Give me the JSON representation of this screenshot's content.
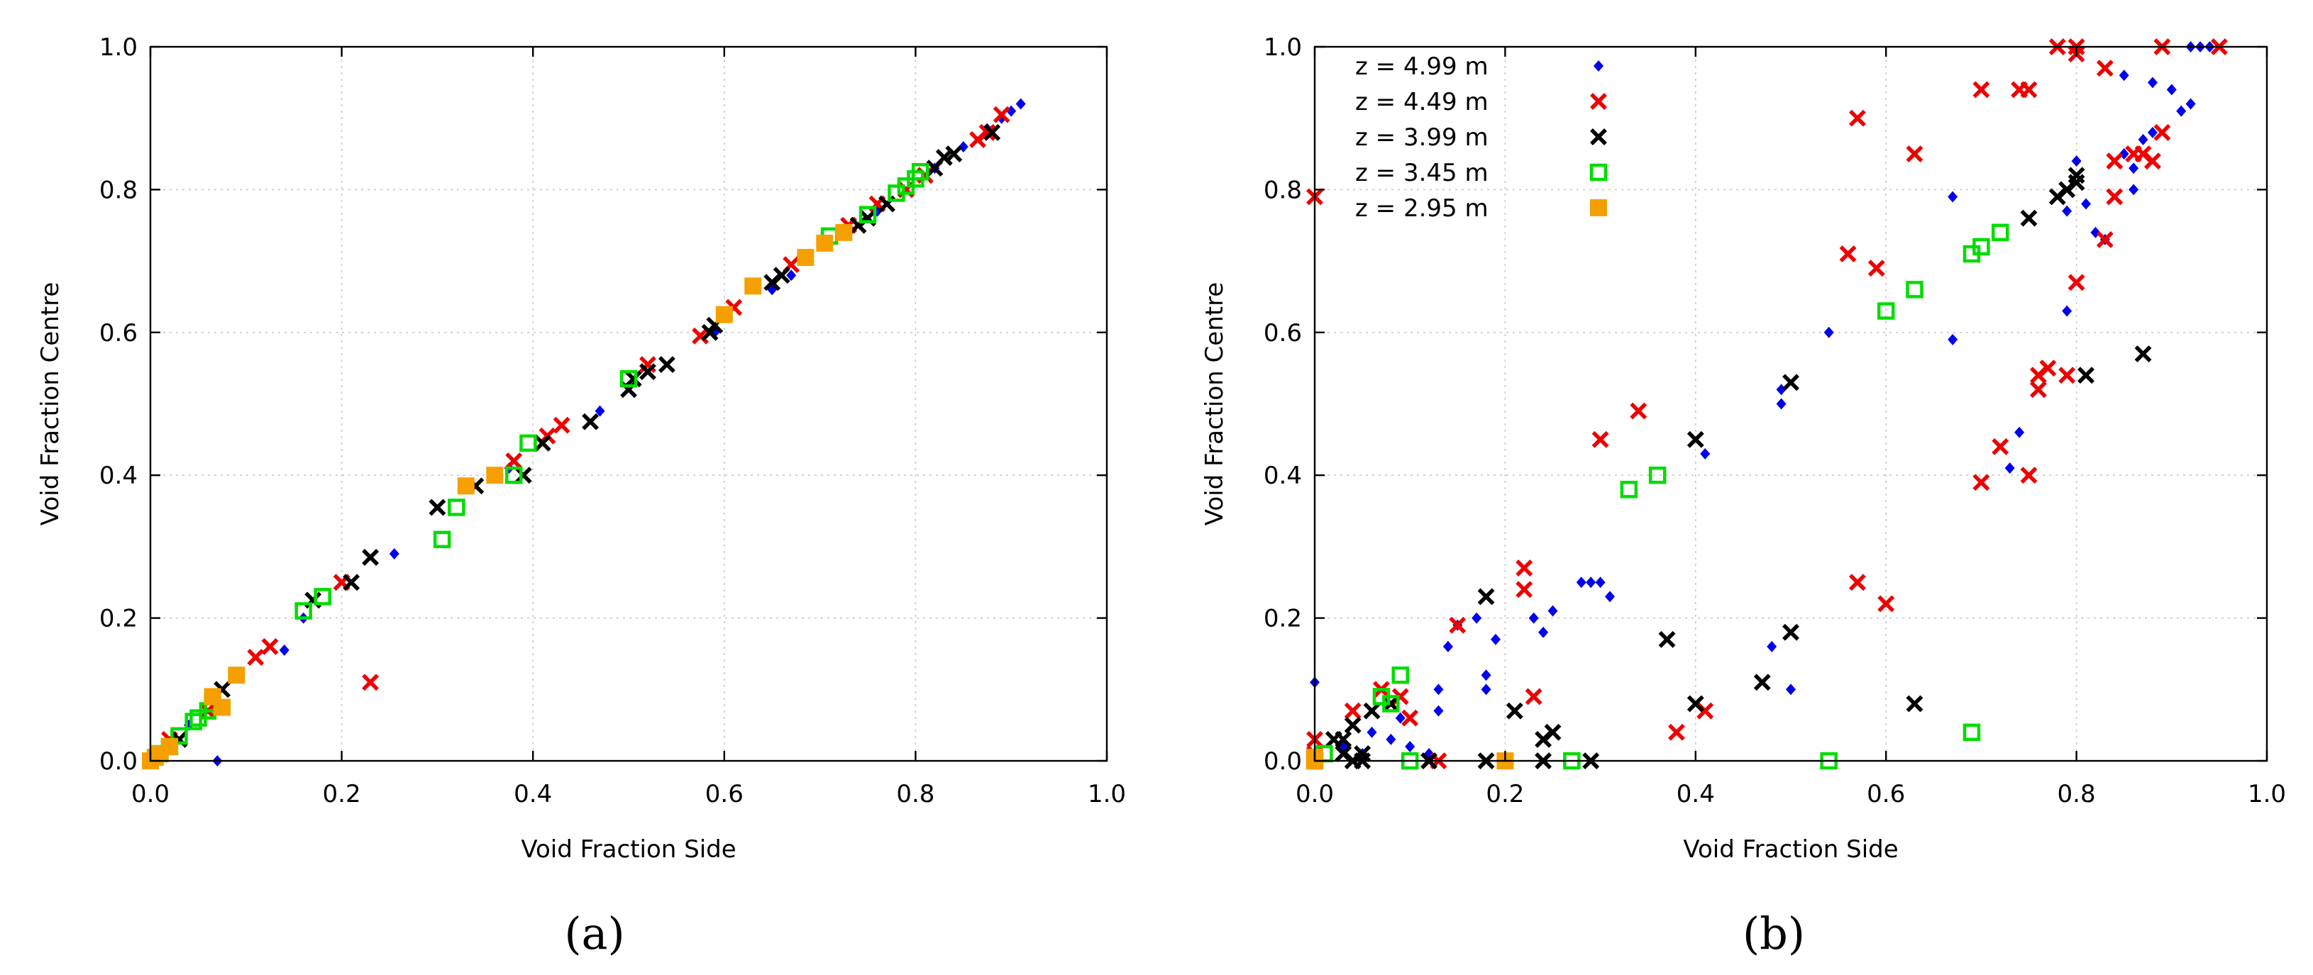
{
  "figure": {
    "panel_a_label": "(a)",
    "panel_b_label": "(b)"
  },
  "chart_data": [
    {
      "type": "scatter",
      "panel": "(a)",
      "title": "",
      "xlabel": "Void Fraction Side",
      "ylabel": "Void Fraction Centre",
      "xlim": [
        0,
        1
      ],
      "ylim": [
        0,
        1
      ],
      "xticks": [
        "0.0",
        "0.2",
        "0.4",
        "0.6",
        "0.8",
        "1.0"
      ],
      "yticks": [
        "0.0",
        "0.2",
        "0.4",
        "0.6",
        "0.8",
        "1.0"
      ],
      "grid": true,
      "series": [
        {
          "name": "z = 4.99 m",
          "color": "#0000ee",
          "marker": "diamond",
          "points": [
            [
              0.07,
              0.0
            ],
            [
              0.14,
              0.155
            ],
            [
              0.16,
              0.2
            ],
            [
              0.255,
              0.29
            ],
            [
              0.375,
              0.41
            ],
            [
              0.47,
              0.49
            ],
            [
              0.59,
              0.6
            ],
            [
              0.65,
              0.66
            ],
            [
              0.67,
              0.68
            ],
            [
              0.76,
              0.77
            ],
            [
              0.82,
              0.83
            ],
            [
              0.85,
              0.86
            ],
            [
              0.875,
              0.885
            ],
            [
              0.89,
              0.9
            ],
            [
              0.9,
              0.91
            ],
            [
              0.91,
              0.92
            ],
            [
              0.04,
              0.05
            ]
          ]
        },
        {
          "name": "z = 4.49 m",
          "color": "#ee0000",
          "marker": "x",
          "points": [
            [
              0.23,
              0.11
            ],
            [
              0.11,
              0.145
            ],
            [
              0.125,
              0.16
            ],
            [
              0.2,
              0.25
            ],
            [
              0.38,
              0.42
            ],
            [
              0.415,
              0.455
            ],
            [
              0.43,
              0.47
            ],
            [
              0.52,
              0.555
            ],
            [
              0.575,
              0.595
            ],
            [
              0.61,
              0.635
            ],
            [
              0.67,
              0.695
            ],
            [
              0.76,
              0.78
            ],
            [
              0.79,
              0.8
            ],
            [
              0.81,
              0.82
            ],
            [
              0.865,
              0.87
            ],
            [
              0.875,
              0.88
            ],
            [
              0.89,
              0.905
            ],
            [
              0.06,
              0.07
            ],
            [
              0.02,
              0.03
            ],
            [
              0.73,
              0.75
            ]
          ]
        },
        {
          "name": "z = 3.99 m",
          "color": "#000000",
          "marker": "x",
          "points": [
            [
              0.03,
              0.03
            ],
            [
              0.075,
              0.1
            ],
            [
              0.17,
              0.225
            ],
            [
              0.21,
              0.25
            ],
            [
              0.23,
              0.285
            ],
            [
              0.3,
              0.355
            ],
            [
              0.34,
              0.385
            ],
            [
              0.39,
              0.4
            ],
            [
              0.41,
              0.445
            ],
            [
              0.46,
              0.475
            ],
            [
              0.5,
              0.52
            ],
            [
              0.505,
              0.535
            ],
            [
              0.52,
              0.545
            ],
            [
              0.54,
              0.555
            ],
            [
              0.585,
              0.6
            ],
            [
              0.59,
              0.61
            ],
            [
              0.65,
              0.67
            ],
            [
              0.66,
              0.68
            ],
            [
              0.74,
              0.75
            ],
            [
              0.75,
              0.76
            ],
            [
              0.77,
              0.78
            ],
            [
              0.82,
              0.83
            ],
            [
              0.83,
              0.845
            ],
            [
              0.84,
              0.85
            ],
            [
              0.88,
              0.88
            ],
            [
              0.02,
              0.02
            ],
            [
              0.01,
              0.01
            ]
          ]
        },
        {
          "name": "z = 3.45 m",
          "color": "#00dd00",
          "marker": "open-square",
          "points": [
            [
              0.01,
              0.01
            ],
            [
              0.02,
              0.02
            ],
            [
              0.03,
              0.035
            ],
            [
              0.045,
              0.055
            ],
            [
              0.05,
              0.06
            ],
            [
              0.06,
              0.07
            ],
            [
              0.065,
              0.08
            ],
            [
              0.16,
              0.21
            ],
            [
              0.18,
              0.23
            ],
            [
              0.305,
              0.31
            ],
            [
              0.32,
              0.355
            ],
            [
              0.38,
              0.4
            ],
            [
              0.395,
              0.445
            ],
            [
              0.5,
              0.535
            ],
            [
              0.71,
              0.735
            ],
            [
              0.75,
              0.765
            ],
            [
              0.78,
              0.795
            ],
            [
              0.79,
              0.805
            ],
            [
              0.8,
              0.815
            ],
            [
              0.805,
              0.825
            ]
          ]
        },
        {
          "name": "z = 2.95 m",
          "color": "#f5a000",
          "marker": "filled-square",
          "points": [
            [
              0.0,
              0.0
            ],
            [
              0.005,
              0.005
            ],
            [
              0.01,
              0.01
            ],
            [
              0.02,
              0.02
            ],
            [
              0.065,
              0.09
            ],
            [
              0.075,
              0.075
            ],
            [
              0.09,
              0.12
            ],
            [
              0.33,
              0.385
            ],
            [
              0.36,
              0.4
            ],
            [
              0.6,
              0.625
            ],
            [
              0.63,
              0.665
            ],
            [
              0.685,
              0.705
            ],
            [
              0.705,
              0.725
            ],
            [
              0.725,
              0.74
            ]
          ]
        }
      ]
    },
    {
      "type": "scatter",
      "panel": "(b)",
      "title": "",
      "xlabel": "Void Fraction Side",
      "ylabel": "Void Fraction Centre",
      "xlim": [
        0,
        1
      ],
      "ylim": [
        0,
        1
      ],
      "xticks": [
        "0.0",
        "0.2",
        "0.4",
        "0.6",
        "0.8",
        "1.0"
      ],
      "yticks": [
        "0.0",
        "0.2",
        "0.4",
        "0.6",
        "0.8",
        "1.0"
      ],
      "grid": true,
      "legend": "top-left",
      "series": [
        {
          "name": "z = 4.99 m",
          "color": "#0000ee",
          "marker": "diamond",
          "points": [
            [
              0.0,
              0.11
            ],
            [
              0.13,
              0.07
            ],
            [
              0.13,
              0.1
            ],
            [
              0.14,
              0.16
            ],
            [
              0.15,
              0.19
            ],
            [
              0.17,
              0.2
            ],
            [
              0.18,
              0.12
            ],
            [
              0.18,
              0.1
            ],
            [
              0.19,
              0.17
            ],
            [
              0.23,
              0.2
            ],
            [
              0.24,
              0.18
            ],
            [
              0.25,
              0.21
            ],
            [
              0.28,
              0.25
            ],
            [
              0.29,
              0.25
            ],
            [
              0.3,
              0.25
            ],
            [
              0.31,
              0.23
            ],
            [
              0.41,
              0.43
            ],
            [
              0.48,
              0.16
            ],
            [
              0.49,
              0.5
            ],
            [
              0.49,
              0.52
            ],
            [
              0.5,
              0.1
            ],
            [
              0.54,
              0.6
            ],
            [
              0.67,
              0.59
            ],
            [
              0.67,
              0.79
            ],
            [
              0.73,
              0.41
            ],
            [
              0.74,
              0.46
            ],
            [
              0.79,
              0.63
            ],
            [
              0.79,
              0.77
            ],
            [
              0.8,
              0.84
            ],
            [
              0.81,
              0.78
            ],
            [
              0.82,
              0.74
            ],
            [
              0.83,
              0.73
            ],
            [
              0.85,
              0.85
            ],
            [
              0.85,
              0.96
            ],
            [
              0.86,
              0.8
            ],
            [
              0.86,
              0.83
            ],
            [
              0.87,
              0.87
            ],
            [
              0.88,
              0.95
            ],
            [
              0.88,
              0.88
            ],
            [
              0.9,
              0.94
            ],
            [
              0.91,
              0.91
            ],
            [
              0.92,
              0.92
            ],
            [
              0.92,
              1.0
            ],
            [
              0.93,
              1.0
            ],
            [
              0.94,
              1.0
            ],
            [
              0.06,
              0.04
            ],
            [
              0.08,
              0.03
            ],
            [
              0.1,
              0.02
            ],
            [
              0.05,
              0.01
            ],
            [
              0.12,
              0.01
            ],
            [
              0.03,
              0.02
            ],
            [
              0.09,
              0.06
            ]
          ]
        },
        {
          "name": "z = 4.49 m",
          "color": "#ee0000",
          "marker": "x",
          "points": [
            [
              0.0,
              0.79
            ],
            [
              0.0,
              0.03
            ],
            [
              0.04,
              0.07
            ],
            [
              0.07,
              0.1
            ],
            [
              0.09,
              0.09
            ],
            [
              0.1,
              0.06
            ],
            [
              0.13,
              0.0
            ],
            [
              0.15,
              0.19
            ],
            [
              0.22,
              0.27
            ],
            [
              0.22,
              0.24
            ],
            [
              0.23,
              0.09
            ],
            [
              0.3,
              0.45
            ],
            [
              0.34,
              0.49
            ],
            [
              0.38,
              0.04
            ],
            [
              0.41,
              0.07
            ],
            [
              0.56,
              0.71
            ],
            [
              0.57,
              0.9
            ],
            [
              0.57,
              0.25
            ],
            [
              0.59,
              0.69
            ],
            [
              0.6,
              0.22
            ],
            [
              0.63,
              0.85
            ],
            [
              0.7,
              0.39
            ],
            [
              0.7,
              0.94
            ],
            [
              0.72,
              0.44
            ],
            [
              0.74,
              0.94
            ],
            [
              0.75,
              0.94
            ],
            [
              0.75,
              0.4
            ],
            [
              0.76,
              0.54
            ],
            [
              0.76,
              0.52
            ],
            [
              0.77,
              0.55
            ],
            [
              0.78,
              1.0
            ],
            [
              0.79,
              0.54
            ],
            [
              0.8,
              1.0
            ],
            [
              0.8,
              0.99
            ],
            [
              0.8,
              0.67
            ],
            [
              0.83,
              0.73
            ],
            [
              0.83,
              0.97
            ],
            [
              0.84,
              0.79
            ],
            [
              0.84,
              0.84
            ],
            [
              0.86,
              0.85
            ],
            [
              0.87,
              0.85
            ],
            [
              0.88,
              0.84
            ],
            [
              0.89,
              0.88
            ],
            [
              0.95,
              1.0
            ],
            [
              0.89,
              1.0
            ],
            [
              0.0,
              0.01
            ]
          ]
        },
        {
          "name": "z = 3.99 m",
          "color": "#000000",
          "marker": "x",
          "points": [
            [
              0.02,
              0.03
            ],
            [
              0.03,
              0.03
            ],
            [
              0.04,
              0.05
            ],
            [
              0.04,
              0.0
            ],
            [
              0.05,
              0.0
            ],
            [
              0.06,
              0.07
            ],
            [
              0.08,
              0.08
            ],
            [
              0.12,
              0.0
            ],
            [
              0.18,
              0.23
            ],
            [
              0.18,
              0.0
            ],
            [
              0.21,
              0.07
            ],
            [
              0.24,
              0.03
            ],
            [
              0.25,
              0.04
            ],
            [
              0.29,
              0.0
            ],
            [
              0.24,
              0.0
            ],
            [
              0.37,
              0.17
            ],
            [
              0.4,
              0.45
            ],
            [
              0.4,
              0.08
            ],
            [
              0.47,
              0.11
            ],
            [
              0.5,
              0.53
            ],
            [
              0.5,
              0.18
            ],
            [
              0.63,
              0.08
            ],
            [
              0.75,
              0.76
            ],
            [
              0.78,
              0.79
            ],
            [
              0.79,
              0.8
            ],
            [
              0.8,
              0.82
            ],
            [
              0.8,
              0.81
            ],
            [
              0.81,
              0.54
            ],
            [
              0.87,
              0.57
            ],
            [
              0.03,
              0.01
            ],
            [
              0.05,
              0.01
            ]
          ]
        },
        {
          "name": "z = 3.45 m",
          "color": "#00dd00",
          "marker": "open-square",
          "points": [
            [
              0.01,
              0.01
            ],
            [
              0.07,
              0.09
            ],
            [
              0.08,
              0.08
            ],
            [
              0.09,
              0.12
            ],
            [
              0.1,
              0.0
            ],
            [
              0.27,
              0.0
            ],
            [
              0.33,
              0.38
            ],
            [
              0.36,
              0.4
            ],
            [
              0.54,
              0.0
            ],
            [
              0.6,
              0.63
            ],
            [
              0.63,
              0.66
            ],
            [
              0.69,
              0.04
            ],
            [
              0.69,
              0.71
            ],
            [
              0.7,
              0.72
            ],
            [
              0.72,
              0.74
            ],
            [
              0.0,
              0.0
            ]
          ]
        },
        {
          "name": "z = 2.95 m",
          "color": "#f5a000",
          "marker": "filled-square",
          "points": [
            [
              0.0,
              0.0
            ],
            [
              0.0,
              0.005
            ],
            [
              0.2,
              0.0
            ]
          ]
        }
      ]
    }
  ]
}
